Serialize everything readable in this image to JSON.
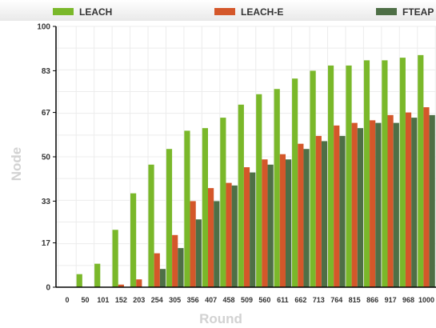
{
  "chart_data": {
    "type": "bar",
    "xlabel": "Round",
    "ylabel": "Node",
    "ylim": [
      0,
      100
    ],
    "y_ticks": [
      "0",
      "17",
      "33",
      "50",
      "67",
      "83",
      "100"
    ],
    "grid": true,
    "legend_position": "top",
    "categories": [
      "0",
      "50",
      "101",
      "152",
      "203",
      "254",
      "305",
      "356",
      "407",
      "458",
      "509",
      "560",
      "611",
      "662",
      "713",
      "764",
      "815",
      "866",
      "917",
      "968",
      "1000"
    ],
    "series": [
      {
        "name": "LEACH",
        "color": "#7ab82a",
        "values": [
          0,
          5,
          9,
          22,
          36,
          47,
          53,
          60,
          61,
          65,
          70,
          74,
          76,
          80,
          83,
          85,
          85,
          87,
          87,
          88,
          89
        ]
      },
      {
        "name": "LEACH-E",
        "color": "#d4572a",
        "values": [
          0,
          0,
          0,
          1,
          3,
          13,
          20,
          33,
          38,
          40,
          46,
          49,
          51,
          55,
          58,
          62,
          63,
          64,
          66,
          67,
          69
        ]
      },
      {
        "name": "FTEAP",
        "color": "#4e6f46",
        "values": [
          0,
          0,
          0,
          0,
          0,
          7,
          15,
          26,
          33,
          39,
          44,
          47,
          49,
          53,
          56,
          58,
          61,
          63,
          63,
          65,
          66
        ]
      }
    ]
  }
}
